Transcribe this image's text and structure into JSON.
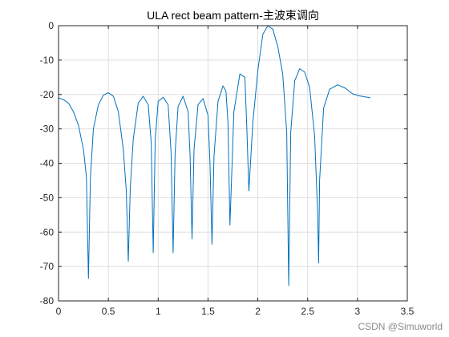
{
  "watermark": "CSDN @Simuworld",
  "chart_data": {
    "type": "line",
    "title": "ULA rect beam pattern-主波束调向",
    "xlabel": "",
    "ylabel": "",
    "xlim": [
      0,
      3.5
    ],
    "ylim": [
      -80,
      0
    ],
    "xticks": [
      0,
      0.5,
      1,
      1.5,
      2,
      2.5,
      3,
      3.5
    ],
    "xtick_labels": [
      "0",
      "0.5",
      "1",
      "1.5",
      "2",
      "2.5",
      "3",
      "3.5"
    ],
    "yticks": [
      0,
      -10,
      -20,
      -30,
      -40,
      -50,
      -60,
      -70,
      -80
    ],
    "ytick_labels": [
      "0",
      "-10",
      "-20",
      "-30",
      "-40",
      "-50",
      "-60",
      "-70",
      "-80"
    ],
    "grid": true,
    "line_color": "#0072BD",
    "series": [
      {
        "x": [
          0,
          0.05,
          0.1,
          0.15,
          0.2,
          0.25,
          0.28,
          0.3,
          0.32,
          0.35,
          0.4,
          0.45,
          0.5,
          0.55,
          0.6,
          0.65,
          0.68,
          0.7,
          0.72,
          0.75,
          0.8,
          0.85,
          0.9,
          0.93,
          0.95,
          0.97,
          1.0,
          1.05,
          1.1,
          1.13,
          1.15,
          1.17,
          1.2,
          1.25,
          1.3,
          1.32,
          1.34,
          1.36,
          1.4,
          1.45,
          1.5,
          1.52,
          1.54,
          1.56,
          1.6,
          1.65,
          1.68,
          1.7,
          1.72,
          1.76,
          1.82,
          1.87,
          1.89,
          1.91,
          1.95,
          2.0,
          2.05,
          2.1,
          2.15,
          2.2,
          2.25,
          2.29,
          2.31,
          2.33,
          2.37,
          2.42,
          2.47,
          2.52,
          2.57,
          2.6,
          2.61,
          2.62,
          2.66,
          2.72,
          2.8,
          2.88,
          2.95,
          3.02,
          3.1,
          3.13
        ],
        "y": [
          -21,
          -21.5,
          -22.5,
          -25,
          -29,
          -36,
          -44,
          -73.5,
          -44,
          -30,
          -23,
          -20.2,
          -19.5,
          -20.5,
          -25,
          -36,
          -48,
          -68.5,
          -47,
          -33,
          -22.5,
          -20.5,
          -23,
          -34,
          -66,
          -33,
          -22,
          -20.8,
          -23,
          -37,
          -66,
          -37,
          -23.5,
          -20.5,
          -25,
          -38,
          -62,
          -36,
          -23,
          -21.2,
          -26,
          -40,
          -63.5,
          -38,
          -22,
          -17.5,
          -19,
          -28,
          -58,
          -25,
          -14,
          -15,
          -30,
          -48,
          -28,
          -13,
          -2.5,
          0,
          -1,
          -6,
          -14,
          -31,
          -75.5,
          -31,
          -16,
          -12.5,
          -13.5,
          -18,
          -32,
          -54,
          -69,
          -45,
          -24,
          -18.5,
          -17.2,
          -18.2,
          -19.8,
          -20.4,
          -20.8,
          -21
        ]
      }
    ]
  }
}
